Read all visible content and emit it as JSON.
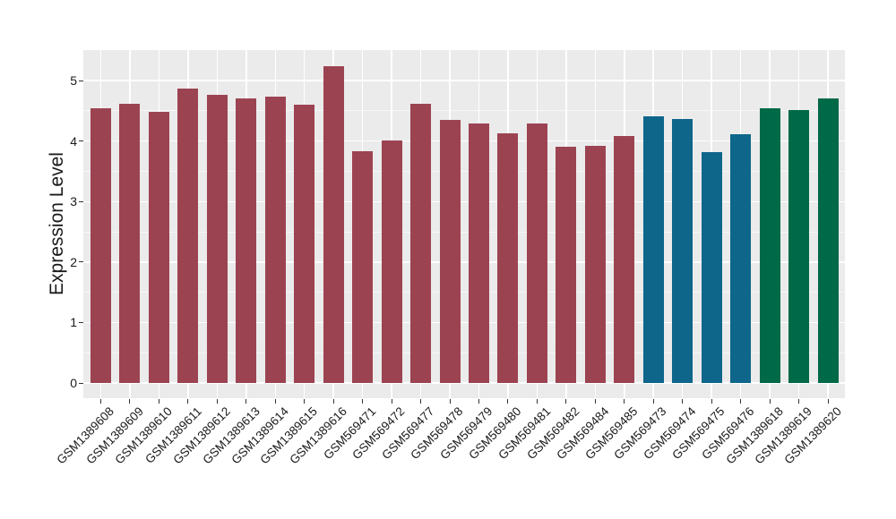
{
  "chart_data": {
    "type": "bar",
    "title": "",
    "xlabel": "",
    "ylabel": "Expression Level",
    "ylim": [
      0,
      5.5
    ],
    "yticks": [
      0,
      1,
      2,
      3,
      4,
      5
    ],
    "yticks_minor": [
      0.5,
      1.5,
      2.5,
      3.5,
      4.5
    ],
    "grid": true,
    "legend_position": "none",
    "categories": [
      "GSM1389608",
      "GSM1389609",
      "GSM1389610",
      "GSM1389611",
      "GSM1389612",
      "GSM1389613",
      "GSM1389614",
      "GSM1389615",
      "GSM1389616",
      "GSM569471",
      "GSM569472",
      "GSM569477",
      "GSM569478",
      "GSM569479",
      "GSM569480",
      "GSM569481",
      "GSM569482",
      "GSM569484",
      "GSM569485",
      "GSM569473",
      "GSM569474",
      "GSM569475",
      "GSM569476",
      "GSM1389618",
      "GSM1389619",
      "GSM1389620"
    ],
    "values": [
      4.55,
      4.62,
      4.48,
      4.87,
      4.76,
      4.7,
      4.73,
      4.6,
      5.24,
      3.83,
      4.01,
      4.62,
      4.35,
      4.29,
      4.13,
      4.29,
      3.9,
      3.92,
      4.09,
      4.41,
      4.37,
      3.82,
      4.11,
      4.55,
      4.52,
      4.7
    ],
    "groups": [
      "maroon",
      "maroon",
      "maroon",
      "maroon",
      "maroon",
      "maroon",
      "maroon",
      "maroon",
      "maroon",
      "maroon",
      "maroon",
      "maroon",
      "maroon",
      "maroon",
      "maroon",
      "maroon",
      "maroon",
      "maroon",
      "maroon",
      "blue",
      "blue",
      "blue",
      "blue",
      "green",
      "green",
      "green"
    ],
    "group_colors": {
      "maroon": "#9C4351",
      "blue": "#0E668A",
      "green": "#006947"
    }
  },
  "style": {
    "background": "#FFFFFF",
    "panel_bg": "#EBEBEB",
    "grid_color": "#FFFFFF",
    "tick_color": "#333333",
    "text_color": "#1A1A1A"
  }
}
